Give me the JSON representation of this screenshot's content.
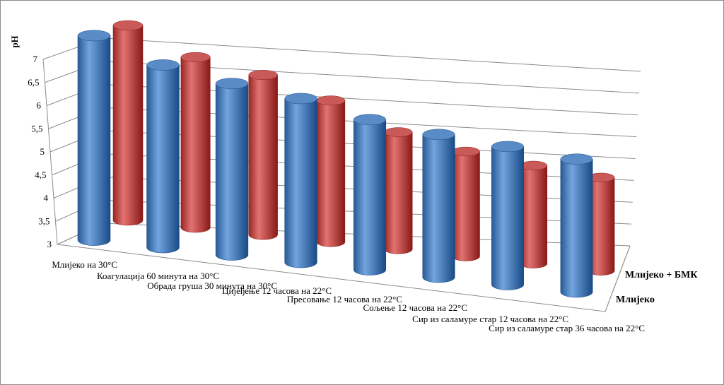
{
  "chart_data": {
    "type": "bar",
    "subtype": "3d-cylinder",
    "title": "",
    "xlabel": "",
    "ylabel": "pH",
    "ylim": [
      3,
      7
    ],
    "yticks": [
      "7",
      "6,5",
      "6",
      "5,5",
      "5",
      "4,5",
      "4",
      "3,5",
      "3"
    ],
    "grid": true,
    "categories": [
      "Млијеко на 30°C",
      "Коагулација 60 минута на 30°C",
      "Обрада груша 30 минута на 30°C",
      "Цијеђење 12 часова на 22°C",
      "Пресовање 12 часова на 22°C",
      "Сољење 12 часова на 22°C",
      "Сир из саламуре стар 12 часова на 22°C",
      "Сир из саламуре стар 36 часова на 22°C"
    ],
    "series": [
      {
        "name": "Млијеко",
        "color": "#4f81bd",
        "values": [
          6.62,
          6.25,
          6.07,
          5.95,
          5.72,
          5.6,
          5.53,
          5.45
        ]
      },
      {
        "name": "Млијеко + БМК",
        "color": "#c0504d",
        "values": [
          6.62,
          6.18,
          6.0,
          5.67,
          5.22,
          5.0,
          4.88,
          4.8
        ]
      }
    ]
  }
}
